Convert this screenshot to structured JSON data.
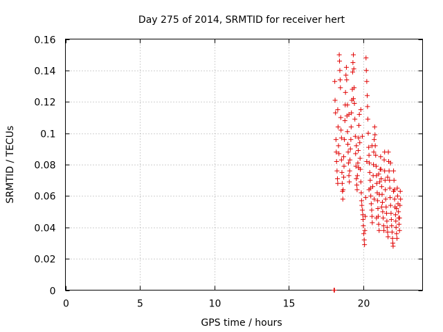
{
  "chart_data": {
    "type": "scatter",
    "title": "Day 275 of 2014, SRMTID for receiver hert",
    "xlabel": "GPS time / hours",
    "ylabel": "SRMTID / TECUs",
    "xlim": [
      0,
      24
    ],
    "ylim": [
      0,
      0.16
    ],
    "xticks": [
      0,
      5,
      10,
      15,
      20
    ],
    "xtick_labels": [
      "0",
      "5",
      "10",
      "15",
      "20"
    ],
    "yticks": [
      0,
      0.02,
      0.04,
      0.06,
      0.08,
      0.1,
      0.12,
      0.14,
      0.16
    ],
    "ytick_labels": [
      "0",
      "0.02",
      "0.04",
      "0.06",
      "0.08",
      "0.1",
      "0.12",
      "0.14",
      "0.16"
    ],
    "grid": true,
    "marker": "+",
    "color": "#e00000",
    "series": [
      {
        "name": "SRMTID",
        "points": [
          [
            18.05,
            0.0
          ],
          [
            18.06,
            0.0
          ],
          [
            18.07,
            0.0
          ],
          [
            18.08,
            0.0
          ],
          [
            18.1,
            0.133
          ],
          [
            18.12,
            0.121
          ],
          [
            18.15,
            0.113
          ],
          [
            18.18,
            0.096
          ],
          [
            18.2,
            0.088
          ],
          [
            18.22,
            0.082
          ],
          [
            18.25,
            0.076
          ],
          [
            18.28,
            0.071
          ],
          [
            18.3,
            0.115
          ],
          [
            18.32,
            0.104
          ],
          [
            18.35,
            0.092
          ],
          [
            18.38,
            0.087
          ],
          [
            18.4,
            0.15
          ],
          [
            18.42,
            0.146
          ],
          [
            18.44,
            0.14
          ],
          [
            18.46,
            0.134
          ],
          [
            18.48,
            0.129
          ],
          [
            18.5,
            0.11
          ],
          [
            18.52,
            0.102
          ],
          [
            18.55,
            0.083
          ],
          [
            18.58,
            0.075
          ],
          [
            18.6,
            0.068
          ],
          [
            18.62,
            0.063
          ],
          [
            18.64,
            0.058
          ],
          [
            18.66,
            0.064
          ],
          [
            18.7,
            0.072
          ],
          [
            18.72,
            0.079
          ],
          [
            18.75,
            0.096
          ],
          [
            18.78,
            0.108
          ],
          [
            18.8,
            0.118
          ],
          [
            18.82,
            0.126
          ],
          [
            18.85,
            0.137
          ],
          [
            18.88,
            0.142
          ],
          [
            18.9,
            0.134
          ],
          [
            18.92,
            0.111
          ],
          [
            18.95,
            0.101
          ],
          [
            18.98,
            0.093
          ],
          [
            19.0,
            0.088
          ],
          [
            19.02,
            0.081
          ],
          [
            19.05,
            0.073
          ],
          [
            19.08,
            0.069
          ],
          [
            19.1,
            0.076
          ],
          [
            19.12,
            0.083
          ],
          [
            19.15,
            0.09
          ],
          [
            19.18,
            0.096
          ],
          [
            19.2,
            0.104
          ],
          [
            19.22,
            0.113
          ],
          [
            19.25,
            0.121
          ],
          [
            19.28,
            0.128
          ],
          [
            19.3,
            0.139
          ],
          [
            19.32,
            0.145
          ],
          [
            19.35,
            0.15
          ],
          [
            19.38,
            0.141
          ],
          [
            19.4,
            0.129
          ],
          [
            19.42,
            0.119
          ],
          [
            19.45,
            0.109
          ],
          [
            19.48,
            0.098
          ],
          [
            19.5,
            0.087
          ],
          [
            19.52,
            0.079
          ],
          [
            19.55,
            0.071
          ],
          [
            19.58,
            0.067
          ],
          [
            19.6,
            0.064
          ],
          [
            19.62,
            0.073
          ],
          [
            19.65,
            0.081
          ],
          [
            19.68,
            0.089
          ],
          [
            19.7,
            0.097
          ],
          [
            19.72,
            0.105
          ],
          [
            19.75,
            0.112
          ],
          [
            19.78,
            0.094
          ],
          [
            19.8,
            0.084
          ],
          [
            19.82,
            0.077
          ],
          [
            19.85,
            0.069
          ],
          [
            19.88,
            0.062
          ],
          [
            19.9,
            0.057
          ],
          [
            19.92,
            0.054
          ],
          [
            19.95,
            0.051
          ],
          [
            19.98,
            0.048
          ],
          [
            20.0,
            0.045
          ],
          [
            20.02,
            0.041
          ],
          [
            20.05,
            0.036
          ],
          [
            20.08,
            0.032
          ],
          [
            20.1,
            0.029
          ],
          [
            20.12,
            0.038
          ],
          [
            20.15,
            0.047
          ],
          [
            20.18,
            0.059
          ],
          [
            20.2,
            0.148
          ],
          [
            20.22,
            0.14
          ],
          [
            20.25,
            0.133
          ],
          [
            20.28,
            0.124
          ],
          [
            20.3,
            0.117
          ],
          [
            20.32,
            0.109
          ],
          [
            20.35,
            0.1
          ],
          [
            20.38,
            0.091
          ],
          [
            20.4,
            0.086
          ],
          [
            20.42,
            0.081
          ],
          [
            20.45,
            0.075
          ],
          [
            20.48,
            0.07
          ],
          [
            20.5,
            0.065
          ],
          [
            20.52,
            0.06
          ],
          [
            20.55,
            0.055
          ],
          [
            20.58,
            0.051
          ],
          [
            20.6,
            0.047
          ],
          [
            20.62,
            0.043
          ],
          [
            20.65,
            0.066
          ],
          [
            20.68,
            0.073
          ],
          [
            20.7,
            0.08
          ],
          [
            20.72,
            0.088
          ],
          [
            20.75,
            0.096
          ],
          [
            20.78,
            0.104
          ],
          [
            20.8,
            0.099
          ],
          [
            20.82,
            0.092
          ],
          [
            20.85,
            0.086
          ],
          [
            20.88,
            0.079
          ],
          [
            20.9,
            0.073
          ],
          [
            20.92,
            0.068
          ],
          [
            20.95,
            0.062
          ],
          [
            20.98,
            0.057
          ],
          [
            21.0,
            0.052
          ],
          [
            21.02,
            0.047
          ],
          [
            21.05,
            0.042
          ],
          [
            21.08,
            0.038
          ],
          [
            21.1,
            0.061
          ],
          [
            21.12,
            0.069
          ],
          [
            21.15,
            0.077
          ],
          [
            21.18,
            0.085
          ],
          [
            21.2,
            0.077
          ],
          [
            21.22,
            0.071
          ],
          [
            21.25,
            0.066
          ],
          [
            21.28,
            0.061
          ],
          [
            21.3,
            0.056
          ],
          [
            21.32,
            0.05
          ],
          [
            21.35,
            0.046
          ],
          [
            21.38,
            0.041
          ],
          [
            21.4,
            0.038
          ],
          [
            21.42,
            0.083
          ],
          [
            21.45,
            0.076
          ],
          [
            21.48,
            0.07
          ],
          [
            21.5,
            0.064
          ],
          [
            21.52,
            0.058
          ],
          [
            21.55,
            0.053
          ],
          [
            21.58,
            0.049
          ],
          [
            21.6,
            0.044
          ],
          [
            21.62,
            0.04
          ],
          [
            21.65,
            0.037
          ],
          [
            21.68,
            0.034
          ],
          [
            21.7,
            0.088
          ],
          [
            21.72,
            0.082
          ],
          [
            21.75,
            0.076
          ],
          [
            21.78,
            0.07
          ],
          [
            21.8,
            0.065
          ],
          [
            21.82,
            0.059
          ],
          [
            21.85,
            0.054
          ],
          [
            21.88,
            0.049
          ],
          [
            21.9,
            0.045
          ],
          [
            21.92,
            0.041
          ],
          [
            21.95,
            0.037
          ],
          [
            21.98,
            0.033
          ],
          [
            22.0,
            0.03
          ],
          [
            22.02,
            0.028
          ],
          [
            22.05,
            0.076
          ],
          [
            22.08,
            0.07
          ],
          [
            22.1,
            0.064
          ],
          [
            22.12,
            0.058
          ],
          [
            22.15,
            0.053
          ],
          [
            22.18,
            0.048
          ],
          [
            22.2,
            0.044
          ],
          [
            22.22,
            0.04
          ],
          [
            22.25,
            0.036
          ],
          [
            22.28,
            0.033
          ],
          [
            22.3,
            0.065
          ],
          [
            22.32,
            0.06
          ],
          [
            22.35,
            0.055
          ],
          [
            22.38,
            0.05
          ],
          [
            22.4,
            0.046
          ],
          [
            22.42,
            0.042
          ],
          [
            22.45,
            0.038
          ],
          [
            22.48,
            0.054
          ],
          [
            22.5,
            0.063
          ],
          [
            22.52,
            0.058
          ],
          [
            18.3,
            0.068
          ],
          [
            18.55,
            0.097
          ],
          [
            18.7,
            0.085
          ],
          [
            18.95,
            0.118
          ],
          [
            19.05,
            0.112
          ],
          [
            19.35,
            0.122
          ],
          [
            19.55,
            0.092
          ],
          [
            19.7,
            0.078
          ],
          [
            19.85,
            0.115
          ],
          [
            19.95,
            0.098
          ],
          [
            20.25,
            0.082
          ],
          [
            20.4,
            0.064
          ],
          [
            20.6,
            0.092
          ],
          [
            20.75,
            0.058
          ],
          [
            20.9,
            0.046
          ],
          [
            21.05,
            0.074
          ],
          [
            21.25,
            0.053
          ],
          [
            21.45,
            0.088
          ],
          [
            21.65,
            0.072
          ],
          [
            21.85,
            0.081
          ],
          [
            22.05,
            0.063
          ],
          [
            22.25,
            0.052
          ],
          [
            22.45,
            0.046
          ]
        ]
      }
    ]
  }
}
